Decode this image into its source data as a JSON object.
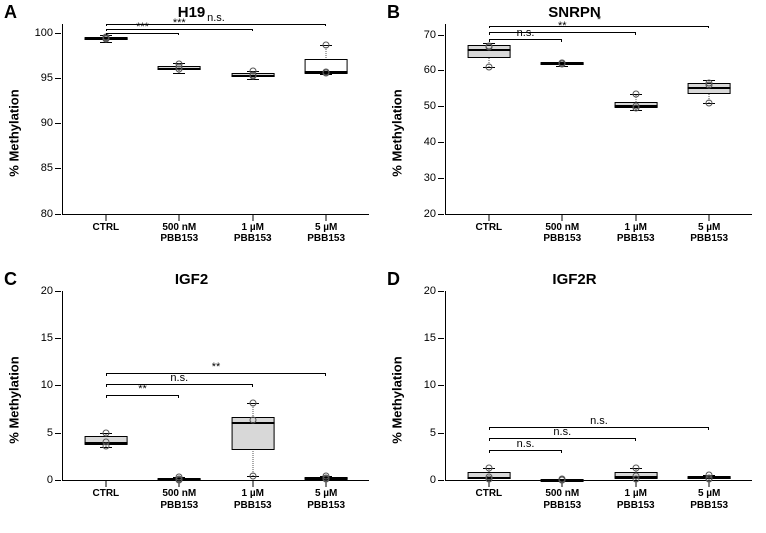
{
  "layout": {
    "panel_label_fontsize": 18,
    "title_fontsize": 15,
    "axis_label_fontsize": 13,
    "tick_fontsize": 11,
    "xtick_fontsize": 10,
    "box_fill": "#d8d8d8",
    "box_fill_light": "#ffffff",
    "point_stroke": "#555555",
    "background": "#ffffff"
  },
  "categories": [
    "CTRL",
    "500 nM\nPBB153",
    "1 µM\nPBB153",
    "5 µM\nPBB153"
  ],
  "panels": [
    {
      "id": "A",
      "title": "H19",
      "ylabel": "% Methylation",
      "ylim": [
        80,
        101
      ],
      "yticks": [
        80,
        85,
        90,
        95,
        100
      ],
      "boxes": [
        {
          "q1": 99.2,
          "median": 99.45,
          "q3": 99.6,
          "wlow": 99.0,
          "whigh": 99.8,
          "fill": "#d8d8d8",
          "points": [
            99.3,
            99.5,
            99.55
          ]
        },
        {
          "q1": 95.9,
          "median": 96.1,
          "q3": 96.4,
          "wlow": 95.6,
          "whigh": 96.7,
          "fill": "#d8d8d8",
          "points": [
            96.6,
            96.0,
            96.2
          ]
        },
        {
          "q1": 95.1,
          "median": 95.3,
          "q3": 95.55,
          "wlow": 94.9,
          "whigh": 95.8,
          "fill": "#d8d8d8",
          "points": [
            95.2,
            95.75,
            95.3
          ]
        },
        {
          "q1": 95.5,
          "median": 95.7,
          "q3": 97.1,
          "wlow": 95.5,
          "whigh": 98.7,
          "fill": "#ffffff",
          "points": [
            95.55,
            95.7,
            98.7
          ]
        }
      ],
      "sig": [
        {
          "from": 0,
          "to": 1,
          "y": 100.0,
          "drop": 0.25,
          "label": "***"
        },
        {
          "from": 0,
          "to": 2,
          "y": 100.5,
          "drop": 0.25,
          "label": "***"
        },
        {
          "from": 0,
          "to": 3,
          "y": 101.0,
          "drop": 0.25,
          "label": "n.s."
        }
      ]
    },
    {
      "id": "B",
      "title": "SNRPN",
      "ylabel": "% Methylation",
      "ylim": [
        20,
        73
      ],
      "yticks": [
        20,
        30,
        40,
        50,
        60,
        70
      ],
      "boxes": [
        {
          "q1": 63.5,
          "median": 66.0,
          "q3": 67.0,
          "wlow": 61.0,
          "whigh": 67.6,
          "fill": "#d8d8d8",
          "points": [
            61.0,
            66.5,
            66.8
          ]
        },
        {
          "q1": 61.6,
          "median": 62.0,
          "q3": 62.3,
          "wlow": 61.3,
          "whigh": 62.5,
          "fill": "#d8d8d8",
          "points": [
            61.8,
            62.2,
            62.1
          ]
        },
        {
          "q1": 49.5,
          "median": 50.2,
          "q3": 51.3,
          "wlow": 49.0,
          "whigh": 53.5,
          "fill": "#d8d8d8",
          "points": [
            49.5,
            50.0,
            53.5
          ]
        },
        {
          "q1": 53.5,
          "median": 55.5,
          "q3": 56.6,
          "wlow": 51.0,
          "whigh": 57.2,
          "fill": "#d8d8d8",
          "points": [
            51.0,
            56.5,
            56.0
          ]
        }
      ],
      "sig": [
        {
          "from": 0,
          "to": 1,
          "y": 68.8,
          "drop": 0.7,
          "label": "n.s."
        },
        {
          "from": 0,
          "to": 2,
          "y": 70.7,
          "drop": 0.7,
          "label": "**"
        },
        {
          "from": 0,
          "to": 3,
          "y": 72.5,
          "drop": 0.7,
          "label": "*"
        }
      ]
    },
    {
      "id": "C",
      "title": "IGF2",
      "ylabel": "% Methylation",
      "ylim": [
        0,
        20
      ],
      "yticks": [
        0,
        5,
        10,
        15,
        20
      ],
      "boxes": [
        {
          "q1": 3.7,
          "median": 4.0,
          "q3": 4.6,
          "wlow": 3.5,
          "whigh": 5.0,
          "fill": "#d8d8d8",
          "points": [
            3.6,
            4.0,
            5.0
          ]
        },
        {
          "q1": 0.05,
          "median": 0.1,
          "q3": 0.25,
          "wlow": 0.0,
          "whigh": 0.35,
          "fill": "#d8d8d8",
          "points": [
            0.05,
            0.1,
            0.3
          ]
        },
        {
          "q1": 3.2,
          "median": 6.2,
          "q3": 6.7,
          "wlow": 0.4,
          "whigh": 8.1,
          "fill": "#d8d8d8",
          "points": [
            0.4,
            6.3,
            8.1
          ]
        },
        {
          "q1": 0.1,
          "median": 0.2,
          "q3": 0.35,
          "wlow": 0.0,
          "whigh": 0.45,
          "fill": "#d8d8d8",
          "points": [
            0.1,
            0.2,
            0.4
          ]
        }
      ],
      "sig": [
        {
          "from": 0,
          "to": 1,
          "y": 9.0,
          "drop": 0.3,
          "label": "**"
        },
        {
          "from": 0,
          "to": 2,
          "y": 10.1,
          "drop": 0.3,
          "label": "n.s."
        },
        {
          "from": 0,
          "to": 3,
          "y": 11.3,
          "drop": 0.3,
          "label": "**"
        }
      ]
    },
    {
      "id": "D",
      "title": "IGF2R",
      "ylabel": "% Methylation",
      "ylim": [
        0,
        20
      ],
      "yticks": [
        0,
        5,
        10,
        15,
        20
      ],
      "boxes": [
        {
          "q1": 0.1,
          "median": 0.3,
          "q3": 0.8,
          "wlow": 0.0,
          "whigh": 1.3,
          "fill": "#d8d8d8",
          "points": [
            0.1,
            0.3,
            1.3
          ]
        },
        {
          "q1": 0.0,
          "median": 0.05,
          "q3": 0.1,
          "wlow": 0.0,
          "whigh": 0.15,
          "fill": "#d8d8d8",
          "points": [
            0.0,
            0.05,
            0.1
          ]
        },
        {
          "q1": 0.15,
          "median": 0.4,
          "q3": 0.85,
          "wlow": 0.05,
          "whigh": 1.3,
          "fill": "#d8d8d8",
          "points": [
            0.1,
            0.4,
            1.3
          ]
        },
        {
          "q1": 0.1,
          "median": 0.25,
          "q3": 0.45,
          "wlow": 0.05,
          "whigh": 0.55,
          "fill": "#d8d8d8",
          "points": [
            0.1,
            0.25,
            0.5
          ]
        }
      ],
      "sig": [
        {
          "from": 0,
          "to": 1,
          "y": 3.2,
          "drop": 0.3,
          "label": "n.s."
        },
        {
          "from": 0,
          "to": 2,
          "y": 4.4,
          "drop": 0.3,
          "label": "n.s."
        },
        {
          "from": 0,
          "to": 3,
          "y": 5.6,
          "drop": 0.3,
          "label": "n.s."
        }
      ]
    }
  ]
}
